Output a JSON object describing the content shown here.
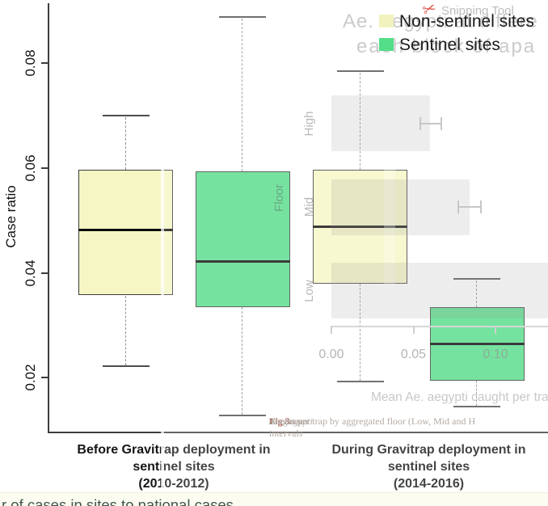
{
  "window": {
    "ghost": {
      "snip_icon_glyph": "✂",
      "snip_title": "Snipping Tool",
      "title_line1": "Ae. aegypti at differe",
      "title_line2": "each block of apa",
      "caption_fig": "Fig 3.",
      "caption_pre": " The mean ",
      "caption_italic": "Ae. aegypti",
      "caption_post": " caught per trap by aggregated floor (Low, Mid and H",
      "caption_line2": "intervals",
      "floor_label": "Floor"
    },
    "footer_text": "r of cases in sites to national cases"
  },
  "legend": {
    "items": [
      {
        "label": "Non-sentinel sites",
        "color": "#f2f2be"
      },
      {
        "label": "Sentinel sites",
        "color": "#53dd88"
      }
    ]
  },
  "chart_data": [
    {
      "type": "boxplot",
      "title": "",
      "ylabel": "Case ratio",
      "ylim": [
        0.012,
        0.091
      ],
      "yticks": [
        0.02,
        0.04,
        0.06,
        0.08
      ],
      "ytick_labels": [
        "0.02",
        "0.04",
        "0.06",
        "0.08"
      ],
      "grid": false,
      "legend_position": "top-right",
      "groups": [
        {
          "label_lines": [
            "Before Gravitrap deployment in",
            "sentinel sites",
            "(2010-2012)"
          ]
        },
        {
          "label_lines": [
            "During Gravitrap deployment  in",
            "sentinel sites",
            "(2014-2016)"
          ]
        }
      ],
      "series": [
        {
          "name": "Non-sentinel sites",
          "fill": "#f6f6c5",
          "boxes": [
            {
              "whisker_low": 0.0222,
              "q1": 0.0357,
              "median": 0.0482,
              "q3": 0.0597,
              "whisker_high": 0.07
            },
            {
              "whisker_low": 0.0193,
              "q1": 0.038,
              "median": 0.0488,
              "q3": 0.0597,
              "whisker_high": 0.0785
            }
          ]
        },
        {
          "name": "Sentinel sites",
          "fill": "#53dd88",
          "boxes": [
            {
              "whisker_low": 0.0128,
              "q1": 0.0335,
              "median": 0.0423,
              "q3": 0.0593,
              "whisker_high": 0.0888
            },
            {
              "whisker_low": 0.0145,
              "q1": 0.0195,
              "median": 0.0265,
              "q3": 0.0335,
              "whisker_high": 0.0388
            }
          ]
        }
      ]
    },
    {
      "type": "bar",
      "orientation": "horizontal",
      "categories": [
        "High",
        "Mid",
        "Low"
      ],
      "values": [
        0.06,
        0.084,
        0.14
      ],
      "error_bars": [
        {
          "low": 0.054,
          "high": 0.067
        },
        {
          "low": 0.0775,
          "high": 0.091
        },
        null
      ],
      "xticks": [
        0.0,
        0.05,
        0.1
      ],
      "xtick_labels": [
        "0.00",
        "0.05",
        "0.10"
      ],
      "xlabel": "Mean Ae. aegypti caught per trap (",
      "ylabel": "Floor",
      "xlim": [
        0,
        0.132
      ]
    }
  ]
}
